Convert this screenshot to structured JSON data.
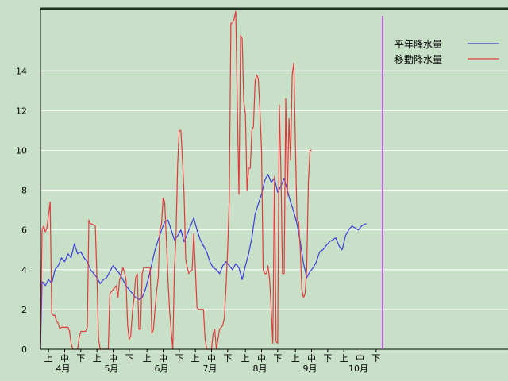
{
  "colors": {
    "background": "#c8e0c8",
    "grid": "#ffffff",
    "axis": "#000000",
    "top_border": "#203020",
    "series_normal": "#3c3cdc",
    "series_moving": "#e03c3c",
    "marker": "#c060e0"
  },
  "chart_data": {
    "type": "line",
    "title": "",
    "xlabel": "",
    "ylabel": "",
    "ylim": [
      0,
      17
    ],
    "yticks": [
      0,
      2,
      4,
      6,
      8,
      10,
      12,
      14
    ],
    "grid": true,
    "legend_position": "top-right",
    "x_unit": "day index from Apr 1",
    "xlim": [
      0,
      213
    ],
    "period_ticks": [
      {
        "day": 5,
        "label": "上"
      },
      {
        "day": 15,
        "label": "中"
      },
      {
        "day": 25,
        "label": "下"
      },
      {
        "day": 35,
        "label": "上"
      },
      {
        "day": 45,
        "label": "中"
      },
      {
        "day": 55,
        "label": "下"
      },
      {
        "day": 66,
        "label": "上"
      },
      {
        "day": 76,
        "label": "中"
      },
      {
        "day": 86,
        "label": "下"
      },
      {
        "day": 96,
        "label": "上"
      },
      {
        "day": 106,
        "label": "中"
      },
      {
        "day": 116,
        "label": "下"
      },
      {
        "day": 127,
        "label": "上"
      },
      {
        "day": 137,
        "label": "中"
      },
      {
        "day": 147,
        "label": "下"
      },
      {
        "day": 158,
        "label": "上"
      },
      {
        "day": 168,
        "label": "中"
      },
      {
        "day": 178,
        "label": "下"
      },
      {
        "day": 188,
        "label": "上"
      },
      {
        "day": 198,
        "label": "中"
      },
      {
        "day": 208,
        "label": "下"
      }
    ],
    "month_labels": [
      {
        "day": 14,
        "label": "4月"
      },
      {
        "day": 44,
        "label": "5月"
      },
      {
        "day": 75,
        "label": "6月"
      },
      {
        "day": 105,
        "label": "7月"
      },
      {
        "day": 136,
        "label": "8月"
      },
      {
        "day": 167,
        "label": "9月"
      },
      {
        "day": 197,
        "label": "10月"
      }
    ],
    "marker_day": 212,
    "series": [
      {
        "name": "平年降水量",
        "color": "#3c3cdc",
        "points": [
          [
            0,
            0
          ],
          [
            1,
            3.4
          ],
          [
            3,
            3.2
          ],
          [
            5,
            3.5
          ],
          [
            7,
            3.3
          ],
          [
            9,
            4.0
          ],
          [
            11,
            4.2
          ],
          [
            13,
            4.6
          ],
          [
            15,
            4.4
          ],
          [
            17,
            4.8
          ],
          [
            19,
            4.6
          ],
          [
            21,
            5.3
          ],
          [
            23,
            4.8
          ],
          [
            25,
            4.9
          ],
          [
            27,
            4.6
          ],
          [
            29,
            4.4
          ],
          [
            31,
            4.0
          ],
          [
            33,
            3.8
          ],
          [
            35,
            3.6
          ],
          [
            37,
            3.3
          ],
          [
            39,
            3.5
          ],
          [
            41,
            3.6
          ],
          [
            43,
            3.9
          ],
          [
            45,
            4.2
          ],
          [
            47,
            4.0
          ],
          [
            49,
            3.8
          ],
          [
            51,
            3.5
          ],
          [
            53,
            3.2
          ],
          [
            55,
            3.0
          ],
          [
            57,
            2.8
          ],
          [
            59,
            2.6
          ],
          [
            61,
            2.5
          ],
          [
            63,
            2.6
          ],
          [
            65,
            3.0
          ],
          [
            67,
            3.6
          ],
          [
            69,
            4.3
          ],
          [
            71,
            5.0
          ],
          [
            73,
            5.5
          ],
          [
            75,
            6.0
          ],
          [
            77,
            6.4
          ],
          [
            79,
            6.5
          ],
          [
            81,
            6.0
          ],
          [
            83,
            5.5
          ],
          [
            85,
            5.7
          ],
          [
            87,
            6.0
          ],
          [
            89,
            5.4
          ],
          [
            91,
            5.8
          ],
          [
            93,
            6.2
          ],
          [
            95,
            6.6
          ],
          [
            97,
            6.0
          ],
          [
            99,
            5.5
          ],
          [
            101,
            5.2
          ],
          [
            103,
            4.9
          ],
          [
            105,
            4.4
          ],
          [
            107,
            4.1
          ],
          [
            109,
            4.0
          ],
          [
            111,
            3.8
          ],
          [
            113,
            4.2
          ],
          [
            115,
            4.4
          ],
          [
            117,
            4.2
          ],
          [
            119,
            4.0
          ],
          [
            121,
            4.3
          ],
          [
            123,
            4.1
          ],
          [
            125,
            3.5
          ],
          [
            127,
            4.2
          ],
          [
            129,
            4.8
          ],
          [
            131,
            5.6
          ],
          [
            133,
            6.8
          ],
          [
            135,
            7.3
          ],
          [
            137,
            7.8
          ],
          [
            139,
            8.5
          ],
          [
            141,
            8.8
          ],
          [
            143,
            8.4
          ],
          [
            145,
            8.6
          ],
          [
            147,
            7.9
          ],
          [
            149,
            8.2
          ],
          [
            151,
            8.6
          ],
          [
            153,
            8.0
          ],
          [
            155,
            7.4
          ],
          [
            157,
            6.9
          ],
          [
            159,
            6.3
          ],
          [
            161,
            5.4
          ],
          [
            163,
            4.3
          ],
          [
            165,
            3.6
          ],
          [
            167,
            3.9
          ],
          [
            169,
            4.1
          ],
          [
            171,
            4.4
          ],
          [
            173,
            4.9
          ],
          [
            175,
            5.0
          ],
          [
            177,
            5.2
          ],
          [
            179,
            5.4
          ],
          [
            181,
            5.5
          ],
          [
            183,
            5.6
          ],
          [
            185,
            5.2
          ],
          [
            187,
            5.0
          ],
          [
            189,
            5.7
          ],
          [
            191,
            6.0
          ],
          [
            193,
            6.2
          ],
          [
            195,
            6.1
          ],
          [
            197,
            6.0
          ],
          [
            199,
            6.2
          ],
          [
            201,
            6.3
          ],
          [
            202,
            6.3
          ]
        ]
      },
      {
        "name": "移動降水量",
        "color": "#e03c3c",
        "points": [
          [
            0,
            0
          ],
          [
            1,
            6.0
          ],
          [
            2,
            6.2
          ],
          [
            3,
            5.9
          ],
          [
            4,
            6.1
          ],
          [
            5,
            6.8
          ],
          [
            6,
            7.4
          ],
          [
            7,
            1.8
          ],
          [
            8,
            1.7
          ],
          [
            9,
            1.7
          ],
          [
            10,
            1.4
          ],
          [
            11,
            1.3
          ],
          [
            12,
            1.0
          ],
          [
            13,
            1.1
          ],
          [
            15,
            1.1
          ],
          [
            17,
            1.1
          ],
          [
            18,
            0.9
          ],
          [
            19,
            0.3
          ],
          [
            20,
            0
          ],
          [
            23,
            0
          ],
          [
            24,
            0.6
          ],
          [
            25,
            0.9
          ],
          [
            28,
            0.9
          ],
          [
            29,
            1.1
          ],
          [
            30,
            6.5
          ],
          [
            31,
            6.3
          ],
          [
            32,
            6.3
          ],
          [
            34,
            6.2
          ],
          [
            35,
            3.5
          ],
          [
            36,
            0.5
          ],
          [
            37,
            0
          ],
          [
            42,
            0
          ],
          [
            43,
            2.8
          ],
          [
            45,
            3.0
          ],
          [
            47,
            3.2
          ],
          [
            48,
            2.6
          ],
          [
            49,
            3.5
          ],
          [
            50,
            3.7
          ],
          [
            51,
            4.1
          ],
          [
            52,
            3.9
          ],
          [
            53,
            3.5
          ],
          [
            54,
            1.2
          ],
          [
            55,
            0.5
          ],
          [
            56,
            0.7
          ],
          [
            57,
            1.9
          ],
          [
            58,
            2.6
          ],
          [
            59,
            3.6
          ],
          [
            60,
            3.8
          ],
          [
            61,
            1.0
          ],
          [
            62,
            1.0
          ],
          [
            63,
            3.8
          ],
          [
            64,
            4.1
          ],
          [
            68,
            4.1
          ],
          [
            69,
            0.8
          ],
          [
            70,
            1.0
          ],
          [
            71,
            2.0
          ],
          [
            72,
            3.0
          ],
          [
            73,
            3.6
          ],
          [
            74,
            6.0
          ],
          [
            75,
            6.3
          ],
          [
            76,
            7.6
          ],
          [
            77,
            7.4
          ],
          [
            78,
            5.5
          ],
          [
            79,
            3.5
          ],
          [
            80,
            2.0
          ],
          [
            81,
            0.9
          ],
          [
            82,
            0
          ],
          [
            83,
            4.0
          ],
          [
            84,
            5.8
          ],
          [
            85,
            9.3
          ],
          [
            86,
            11.0
          ],
          [
            87,
            11.0
          ],
          [
            88,
            9.5
          ],
          [
            89,
            7.8
          ],
          [
            90,
            4.5
          ],
          [
            91,
            4.1
          ],
          [
            92,
            3.8
          ],
          [
            94,
            4.0
          ],
          [
            95,
            5.8
          ],
          [
            96,
            4.0
          ],
          [
            97,
            2.1
          ],
          [
            98,
            2.0
          ],
          [
            101,
            2.0
          ],
          [
            102,
            0.5
          ],
          [
            103,
            0
          ],
          [
            106,
            0
          ],
          [
            107,
            0.8
          ],
          [
            108,
            1.0
          ],
          [
            109,
            0
          ],
          [
            110,
            0.5
          ],
          [
            111,
            1.0
          ],
          [
            112,
            1.1
          ],
          [
            113,
            1.2
          ],
          [
            114,
            1.6
          ],
          [
            115,
            3.2
          ],
          [
            116,
            5.0
          ],
          [
            117,
            7.5
          ],
          [
            118,
            16.4
          ],
          [
            119,
            16.4
          ],
          [
            120,
            16.6
          ],
          [
            121,
            17.0
          ],
          [
            122,
            12.2
          ],
          [
            123,
            7.8
          ],
          [
            124,
            15.8
          ],
          [
            125,
            15.6
          ],
          [
            126,
            12.5
          ],
          [
            127,
            11.8
          ],
          [
            128,
            8.0
          ],
          [
            129,
            9.1
          ],
          [
            130,
            9.1
          ],
          [
            131,
            11.0
          ],
          [
            132,
            11.2
          ],
          [
            133,
            13.5
          ],
          [
            134,
            13.8
          ],
          [
            135,
            13.6
          ],
          [
            136,
            12.0
          ],
          [
            137,
            10.0
          ],
          [
            138,
            4.0
          ],
          [
            139,
            3.8
          ],
          [
            140,
            3.8
          ],
          [
            141,
            4.2
          ],
          [
            142,
            3.5
          ],
          [
            143,
            2.0
          ],
          [
            144,
            0.3
          ],
          [
            145,
            8.7
          ],
          [
            146,
            0.4
          ],
          [
            147,
            0.3
          ],
          [
            148,
            12.3
          ],
          [
            149,
            9.0
          ],
          [
            150,
            3.8
          ],
          [
            151,
            3.8
          ],
          [
            152,
            12.6
          ],
          [
            153,
            7.7
          ],
          [
            154,
            11.6
          ],
          [
            155,
            9.5
          ],
          [
            156,
            13.8
          ],
          [
            157,
            14.4
          ],
          [
            158,
            10.2
          ],
          [
            159,
            6.5
          ],
          [
            160,
            6.4
          ],
          [
            161,
            5.0
          ],
          [
            162,
            3.0
          ],
          [
            163,
            2.6
          ],
          [
            164,
            2.8
          ],
          [
            165,
            4.0
          ],
          [
            166,
            8.4
          ],
          [
            167,
            10.0
          ],
          [
            168,
            10.0
          ]
        ]
      }
    ]
  }
}
